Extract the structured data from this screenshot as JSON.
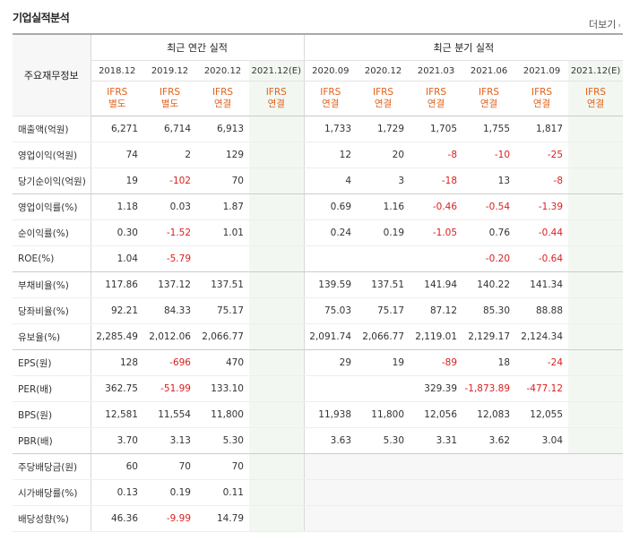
{
  "section_title": "기업실적분석",
  "more_label": "더보기",
  "header": {
    "row_label": "주요재무정보",
    "annual_title": "최근 연간 실적",
    "quarter_title": "최근 분기 실적",
    "annual_periods": [
      "2018.12",
      "2019.12",
      "2020.12",
      "2021.12(E)"
    ],
    "quarter_periods": [
      "2020.09",
      "2020.12",
      "2021.03",
      "2021.06",
      "2021.09",
      "2021.12(E)"
    ],
    "annual_ifrs": [
      [
        "IFRS",
        "별도"
      ],
      [
        "IFRS",
        "별도"
      ],
      [
        "IFRS",
        "연결"
      ],
      [
        "IFRS",
        "연결"
      ]
    ],
    "quarter_ifrs": [
      [
        "IFRS",
        "연결"
      ],
      [
        "IFRS",
        "연결"
      ],
      [
        "IFRS",
        "연결"
      ],
      [
        "IFRS",
        "연결"
      ],
      [
        "IFRS",
        "연결"
      ],
      [
        "IFRS",
        "연결"
      ]
    ]
  },
  "rows": [
    {
      "label": "매출액(억원)",
      "annual": [
        "6,271",
        "6,714",
        "6,913",
        ""
      ],
      "quarter": [
        "1,733",
        "1,729",
        "1,705",
        "1,755",
        "1,817",
        ""
      ]
    },
    {
      "label": "영업이익(억원)",
      "annual": [
        "74",
        "2",
        "129",
        ""
      ],
      "quarter": [
        "12",
        "20",
        "-8",
        "-10",
        "-25",
        ""
      ]
    },
    {
      "label": "당기순이익(억원)",
      "annual": [
        "19",
        "-102",
        "70",
        ""
      ],
      "quarter": [
        "4",
        "3",
        "-18",
        "13",
        "-8",
        ""
      ]
    },
    {
      "label": "영업이익률(%)",
      "annual": [
        "1.18",
        "0.03",
        "1.87",
        ""
      ],
      "quarter": [
        "0.69",
        "1.16",
        "-0.46",
        "-0.54",
        "-1.39",
        ""
      ]
    },
    {
      "label": "순이익률(%)",
      "annual": [
        "0.30",
        "-1.52",
        "1.01",
        ""
      ],
      "quarter": [
        "0.24",
        "0.19",
        "-1.05",
        "0.76",
        "-0.44",
        ""
      ]
    },
    {
      "label": "ROE(%)",
      "annual": [
        "1.04",
        "-5.79",
        "",
        ""
      ],
      "quarter": [
        "",
        "",
        "",
        "-0.20",
        "-0.64",
        ""
      ]
    },
    {
      "label": "부채비율(%)",
      "annual": [
        "117.86",
        "137.12",
        "137.51",
        ""
      ],
      "quarter": [
        "139.59",
        "137.51",
        "141.94",
        "140.22",
        "141.34",
        ""
      ]
    },
    {
      "label": "당좌비율(%)",
      "annual": [
        "92.21",
        "84.33",
        "75.17",
        ""
      ],
      "quarter": [
        "75.03",
        "75.17",
        "87.12",
        "85.30",
        "88.88",
        ""
      ]
    },
    {
      "label": "유보율(%)",
      "annual": [
        "2,285.49",
        "2,012.06",
        "2,066.77",
        ""
      ],
      "quarter": [
        "2,091.74",
        "2,066.77",
        "2,119.01",
        "2,129.17",
        "2,124.34",
        ""
      ]
    },
    {
      "label": "EPS(원)",
      "annual": [
        "128",
        "-696",
        "470",
        ""
      ],
      "quarter": [
        "29",
        "19",
        "-89",
        "18",
        "-24",
        ""
      ]
    },
    {
      "label": "PER(배)",
      "annual": [
        "362.75",
        "-51.99",
        "133.10",
        ""
      ],
      "quarter": [
        "",
        "",
        "329.39",
        "-1,873.89",
        "-477.12",
        ""
      ]
    },
    {
      "label": "BPS(원)",
      "annual": [
        "12,581",
        "11,554",
        "11,800",
        ""
      ],
      "quarter": [
        "11,938",
        "11,800",
        "12,056",
        "12,083",
        "12,055",
        ""
      ]
    },
    {
      "label": "PBR(배)",
      "annual": [
        "3.70",
        "3.13",
        "5.30",
        ""
      ],
      "quarter": [
        "3.63",
        "5.30",
        "3.31",
        "3.62",
        "3.04",
        ""
      ]
    },
    {
      "label": "주당배당금(원)",
      "annual": [
        "60",
        "70",
        "70",
        ""
      ],
      "quarter": [
        "",
        "",
        "",
        "",
        "",
        ""
      ]
    },
    {
      "label": "시가배당률(%)",
      "annual": [
        "0.13",
        "0.19",
        "0.11",
        ""
      ],
      "quarter": [
        "",
        "",
        "",
        "",
        "",
        ""
      ]
    },
    {
      "label": "배당성향(%)",
      "annual": [
        "46.36",
        "-9.99",
        "14.79",
        ""
      ],
      "quarter": [
        "",
        "",
        "",
        "",
        "",
        ""
      ]
    }
  ],
  "colors": {
    "negative": "#dc1e1e",
    "ifrs": "#e0621c",
    "estimate_bg": "#f2f8f1",
    "blank_bg": "#f7f7f7"
  }
}
